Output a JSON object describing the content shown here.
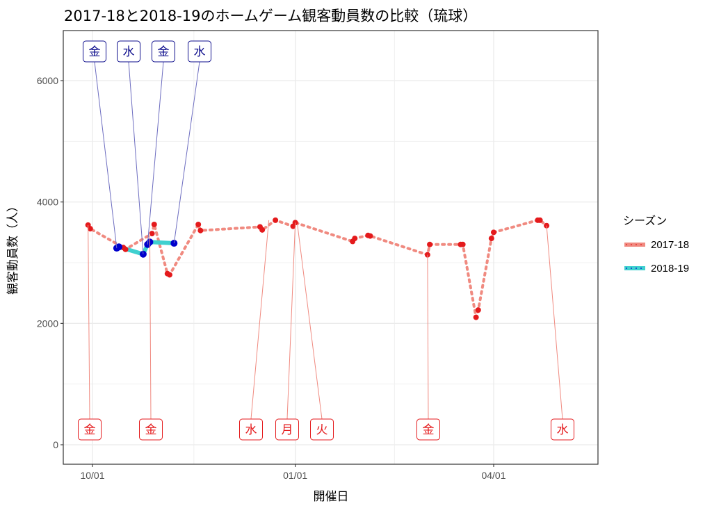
{
  "chart_data": {
    "type": "line",
    "title": "2017-18と2018-19のホームゲーム観客動員数の比較（琉球）",
    "xlabel": "開催日",
    "ylabel": "観客動員数（人）",
    "x_ticks": [
      "10/01",
      "01/01",
      "04/01"
    ],
    "y_ticks": [
      0,
      2000,
      4000,
      6000
    ],
    "ylim": [
      -230,
      6800
    ],
    "grid": true,
    "legend": {
      "title": "シーズン",
      "position": "right"
    },
    "colors": {
      "2017-18": "#e41a1c",
      "2017-18_line": "#f08a80",
      "2018-19": "#0000cc",
      "2018-19_line": "#3fd0cf",
      "label_2018-19": "#0d0d8c",
      "leader_2018-19": "#6d6dc0"
    },
    "series": [
      {
        "name": "2017-18",
        "points": [
          [
            "09-29",
            3620
          ],
          [
            "09-30",
            3560
          ],
          [
            "10-15",
            3250
          ],
          [
            "10-16",
            3220
          ],
          [
            "10-28",
            3480
          ],
          [
            "10-29",
            3630
          ],
          [
            "11-04",
            2820
          ],
          [
            "11-05",
            2800
          ],
          [
            "11-18",
            3630
          ],
          [
            "11-19",
            3530
          ],
          [
            "12-16",
            3590
          ],
          [
            "12-17",
            3540
          ],
          [
            "12-23",
            3700
          ],
          [
            "12-31",
            3600
          ],
          [
            "01-01",
            3660
          ],
          [
            "01-27",
            3350
          ],
          [
            "01-28",
            3400
          ],
          [
            "02-03",
            3450
          ],
          [
            "02-04",
            3440
          ],
          [
            "03-02",
            3130
          ],
          [
            "03-03",
            3300
          ],
          [
            "03-17",
            3300
          ],
          [
            "03-18",
            3300
          ],
          [
            "03-24",
            2100
          ],
          [
            "03-25",
            2220
          ],
          [
            "03-31",
            3400
          ],
          [
            "04-01",
            3500
          ],
          [
            "04-21",
            3700
          ],
          [
            "04-22",
            3700
          ],
          [
            "04-25",
            3610
          ]
        ]
      },
      {
        "name": "2018-19",
        "points": [
          [
            "10-12",
            3240
          ],
          [
            "10-13",
            3260
          ],
          [
            "10-24",
            3140
          ],
          [
            "10-26",
            3300
          ],
          [
            "10-27",
            3340
          ],
          [
            "11-07",
            3320
          ]
        ]
      }
    ],
    "labels": [
      {
        "series": "2018-19",
        "text": "金",
        "date": "10-12",
        "value": 3240
      },
      {
        "series": "2018-19",
        "text": "水",
        "date": "10-24",
        "value": 3140
      },
      {
        "series": "2018-19",
        "text": "金",
        "date": "10-26",
        "value": 3300
      },
      {
        "series": "2018-19",
        "text": "水",
        "date": "11-07",
        "value": 3320
      },
      {
        "series": "2017-18",
        "text": "金",
        "date": "09-29",
        "value": 3620
      },
      {
        "series": "2017-18",
        "text": "金",
        "date": "10-27",
        "value": 3480
      },
      {
        "series": "2017-18",
        "text": "水",
        "date": "12-20",
        "value": 3700
      },
      {
        "series": "2017-18",
        "text": "月",
        "date": "01-01",
        "value": 3660
      },
      {
        "series": "2017-18",
        "text": "火",
        "date": "01-02",
        "value": 3620
      },
      {
        "series": "2017-18",
        "text": "金",
        "date": "03-02",
        "value": 3130
      },
      {
        "series": "2017-18",
        "text": "水",
        "date": "04-25",
        "value": 3610
      }
    ]
  }
}
